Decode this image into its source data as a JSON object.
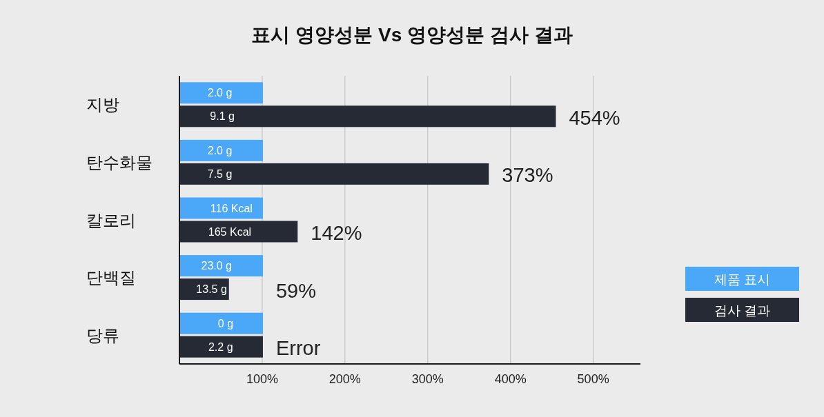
{
  "chart_data": {
    "type": "bar",
    "orientation": "horizontal",
    "title": "표시 영양성분 Vs 영양성분 검사 결과",
    "categories": [
      "지방",
      "탄수화물",
      "칼로리",
      "단백질",
      "당류"
    ],
    "series": [
      {
        "name": "제품 표시",
        "color": "#4ba7f8",
        "values": [
          100,
          100,
          100,
          100,
          100
        ]
      },
      {
        "name": "검사 결과",
        "color": "#262a35",
        "values": [
          454,
          373,
          142,
          59,
          100
        ],
        "value_labels": [
          "454%",
          "373%",
          "142%",
          "59%",
          "Error"
        ]
      }
    ],
    "xlim": [
      0,
      557
    ],
    "xticks": [
      {
        "value": 100,
        "label": "100%"
      },
      {
        "value": 200,
        "label": "200%"
      },
      {
        "value": 300,
        "label": "300%"
      },
      {
        "value": 400,
        "label": "400%"
      },
      {
        "value": 500,
        "label": "500%"
      }
    ],
    "grid": "x",
    "legend": "right",
    "annotations": [
      {
        "text": "2.0 g",
        "x": 48,
        "y": "지방"
      },
      {
        "text": "9.1 g",
        "x": 51,
        "y": "지방"
      },
      {
        "text": "2.0 g",
        "x": 48,
        "y": "탄수화물"
      },
      {
        "text": "7.5 g",
        "x": 48,
        "y": "탄수화물"
      },
      {
        "text": "116 Kcal",
        "x": 62,
        "y": "칼로리"
      },
      {
        "text": "165 Kcal",
        "x": 60,
        "y": "칼로리"
      },
      {
        "text": "23.0 g",
        "x": 44,
        "y": "단백질"
      },
      {
        "text": "13.5 g",
        "x": 38,
        "y": "단백질"
      },
      {
        "text": "0 g",
        "x": 55,
        "y": "당류"
      },
      {
        "text": "2.2 g",
        "x": 49,
        "y": "당류"
      }
    ]
  }
}
